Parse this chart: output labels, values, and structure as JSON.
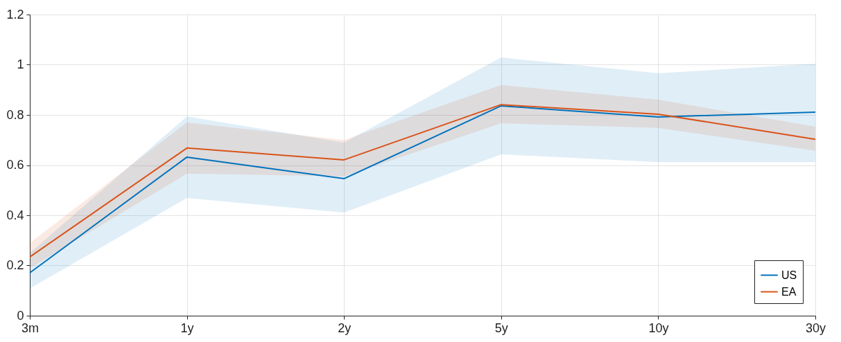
{
  "chart_data": {
    "type": "line",
    "categories": [
      "3m",
      "1y",
      "2y",
      "5y",
      "10y",
      "30y"
    ],
    "series": [
      {
        "name": "US",
        "color": "#0072bd",
        "values": [
          0.171,
          0.632,
          0.546,
          0.836,
          0.792,
          0.811
        ],
        "lower": [
          0.108,
          0.469,
          0.411,
          0.643,
          0.612,
          0.612
        ],
        "upper": [
          0.25,
          0.794,
          0.69,
          1.029,
          0.966,
          1.004
        ]
      },
      {
        "name": "EA",
        "color": "#d95319",
        "values": [
          0.234,
          0.668,
          0.621,
          0.841,
          0.803,
          0.703
        ],
        "lower": [
          0.19,
          0.566,
          0.555,
          0.767,
          0.748,
          0.657
        ],
        "upper": [
          0.29,
          0.77,
          0.7,
          0.919,
          0.861,
          0.753
        ]
      }
    ],
    "ylim": [
      0,
      1.2
    ],
    "yticks": [
      0,
      0.2,
      0.4,
      0.6,
      0.8,
      1,
      1.2
    ],
    "grid": true,
    "legend": "bottom right"
  }
}
